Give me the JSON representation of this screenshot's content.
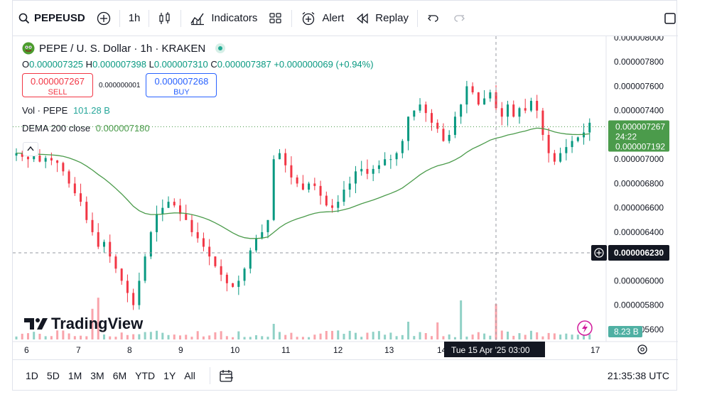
{
  "toolbar": {
    "symbol": "PEPEUSD",
    "interval": "1h",
    "indicators_label": "Indicators",
    "alert_label": "Alert",
    "replay_label": "Replay"
  },
  "legend": {
    "title": "PEPE / U. S. Dollar · 1h · KRAKEN",
    "o_key": "O",
    "o": "0.000007325",
    "h_key": "H",
    "h": "0.000007398",
    "l_key": "L",
    "l": "0.000007310",
    "c_key": "C",
    "c": "0.000007387",
    "change": "+0.000000069 (+0.94%)"
  },
  "trade": {
    "sell_price": "0.000007267",
    "sell_label": "SELL",
    "spread": "0.000000001",
    "buy_price": "0.000007268",
    "buy_label": "BUY"
  },
  "volume": {
    "label": "Vol · PEPE",
    "value": "101.28 B"
  },
  "dema": {
    "label": "DEMA 200 close",
    "value": "0.000007180"
  },
  "price_axis": {
    "ticks": [
      "0.000008000",
      "0.000007800",
      "0.000007600",
      "0.000007400",
      "0.000007200",
      "0.000007000",
      "0.000006800",
      "0.000006600",
      "0.000006400",
      "0.000006200",
      "0.000006000",
      "0.000005800",
      "0.000005600"
    ],
    "last_price": "0.000007267",
    "countdown": "24:22",
    "dema_label": "0.000007192",
    "crosshair_price": "0.000006230",
    "vol_label": "8.23 B"
  },
  "time_axis": {
    "ticks": [
      "6",
      "7",
      "8",
      "9",
      "10",
      "11",
      "12",
      "13",
      "14",
      "17"
    ],
    "crosshair_time": "Tue 15 Apr '25   03:00"
  },
  "watermark": "TradingView",
  "ranges": [
    "1D",
    "5D",
    "1M",
    "3M",
    "6M",
    "YTD",
    "1Y",
    "All"
  ],
  "clock": "21:35:38 UTC",
  "colors": {
    "up": "#089981",
    "down": "#f23645",
    "dema": "#4b9b4b",
    "accent": "#2962ff"
  },
  "chart_data": {
    "type": "candlestick",
    "interval": "1h",
    "ylim": [
      5.5e-06,
      8e-06
    ],
    "close_approx": [
      7.05e-06,
      7.02e-06,
      7e-06,
      7.03e-06,
      6.98e-06,
      7.01e-06,
      6.99e-06,
      6.97e-06,
      6.9e-06,
      6.8e-06,
      6.72e-06,
      6.65e-06,
      6.5e-06,
      6.4e-06,
      6.28e-06,
      6.32e-06,
      6.2e-06,
      6.1e-06,
      6e-06,
      5.9e-06,
      5.8e-06,
      6e-06,
      6.2e-06,
      6.4e-06,
      6.55e-06,
      6.6e-06,
      6.65e-06,
      6.62e-06,
      6.55e-06,
      6.5e-06,
      6.4e-06,
      6.35e-06,
      6.28e-06,
      6.2e-06,
      6.12e-06,
      6.05e-06,
      5.98e-06,
      5.95e-06,
      6e-06,
      6.1e-06,
      6.25e-06,
      6.35e-06,
      6.4e-06,
      6.5e-06,
      7e-06,
      7.05e-06,
      6.95e-06,
      6.85e-06,
      6.8e-06,
      6.75e-06,
      6.8e-06,
      6.78e-06,
      6.7e-06,
      6.62e-06,
      6.6e-06,
      6.65e-06,
      6.75e-06,
      6.8e-06,
      6.9e-06,
      6.92e-06,
      6.88e-06,
      6.92e-06,
      6.95e-06,
      7e-06,
      7e-06,
      7.05e-06,
      7.15e-06,
      7.35e-06,
      7.4e-06,
      7.45e-06,
      7.38e-06,
      7.3e-06,
      7.25e-06,
      7.15e-06,
      7.2e-06,
      7.35e-06,
      7.45e-06,
      7.6e-06,
      7.55e-06,
      7.45e-06,
      7.5e-06,
      7.55e-06,
      7.42e-06,
      7.35e-06,
      7.45e-06,
      7.35e-06,
      7.42e-06,
      7.4e-06,
      7.48e-06,
      7.4e-06,
      7.2e-06,
      7.05e-06,
      6.98e-06,
      7.05e-06,
      7.1e-06,
      7.15e-06,
      7.18e-06,
      7.22e-06,
      7.3e-06
    ],
    "volume_spikes_approx": [
      {
        "x": "7",
        "v": "high"
      },
      {
        "x": "14",
        "v": "highest"
      }
    ]
  }
}
